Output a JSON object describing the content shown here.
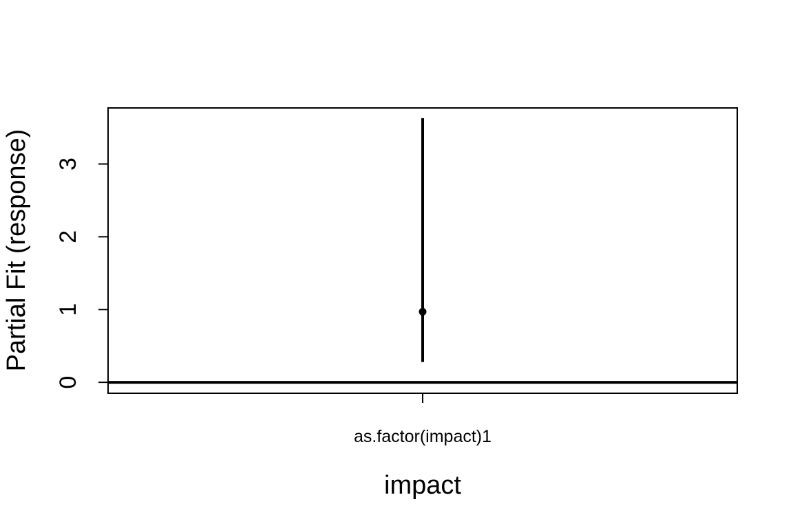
{
  "chart_data": {
    "type": "scatter",
    "title": "",
    "xlabel": "impact",
    "ylabel": "Partial Fit (response)",
    "categories": [
      "as.factor(impact)1"
    ],
    "points": [
      {
        "category": "as.factor(impact)1",
        "y": 0.97,
        "lower": 0.28,
        "upper": 3.63
      }
    ],
    "reference_line": 0,
    "yticks": [
      0,
      1,
      2,
      3
    ],
    "ylim": [
      -0.15,
      3.77
    ],
    "grid": false,
    "legend": "none"
  }
}
